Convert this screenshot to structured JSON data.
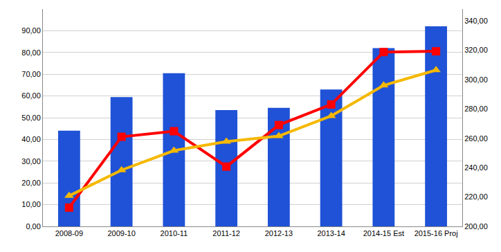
{
  "chart_data": {
    "type": "bar",
    "categories": [
      "2008-09",
      "2009-10",
      "2010-11",
      "2011-12",
      "2012-13",
      "2013-14",
      "2014-15 Est",
      "2015-16 Proj"
    ],
    "series": [
      {
        "type": "bar",
        "color": "#1f52d6",
        "values": [
          44,
          59.5,
          70.5,
          53.5,
          54.5,
          63,
          82,
          92
        ]
      },
      {
        "type": "line",
        "axis": "y2",
        "color": "#ff0000",
        "marker": "square",
        "values": [
          212.8,
          261,
          264.8,
          240.7,
          269,
          283,
          318.7,
          319.2
        ]
      },
      {
        "type": "line",
        "axis": "y2",
        "color": "#f5b800",
        "marker": "triangle-up",
        "values": [
          220.8,
          238.3,
          251.6,
          257.7,
          261.5,
          275.2,
          296,
          306.4
        ]
      }
    ],
    "ylim": [
      0,
      100
    ],
    "yticks": [
      {
        "value": 0,
        "label": "0,00"
      },
      {
        "value": 10,
        "label": "10,00"
      },
      {
        "value": 20,
        "label": "20,00"
      },
      {
        "value": 30,
        "label": "30,00"
      },
      {
        "value": 40,
        "label": "40,00"
      },
      {
        "value": 50,
        "label": "50,00"
      },
      {
        "value": 60,
        "label": "60,00"
      },
      {
        "value": 70,
        "label": "70,00"
      },
      {
        "value": 80,
        "label": "80,00"
      },
      {
        "value": 90,
        "label": "90,00"
      }
    ],
    "y2lim": [
      200,
      348
    ],
    "y2ticks": [
      {
        "value": 200,
        "label": "200,00"
      },
      {
        "value": 220,
        "label": "220,00"
      },
      {
        "value": 240,
        "label": "240,00"
      },
      {
        "value": 260,
        "label": "260,00"
      },
      {
        "value": 280,
        "label": "280,00"
      },
      {
        "value": 300,
        "label": "300,00"
      },
      {
        "value": 320,
        "label": "320,00"
      },
      {
        "value": 340,
        "label": "340,00"
      }
    ],
    "grid": true
  }
}
